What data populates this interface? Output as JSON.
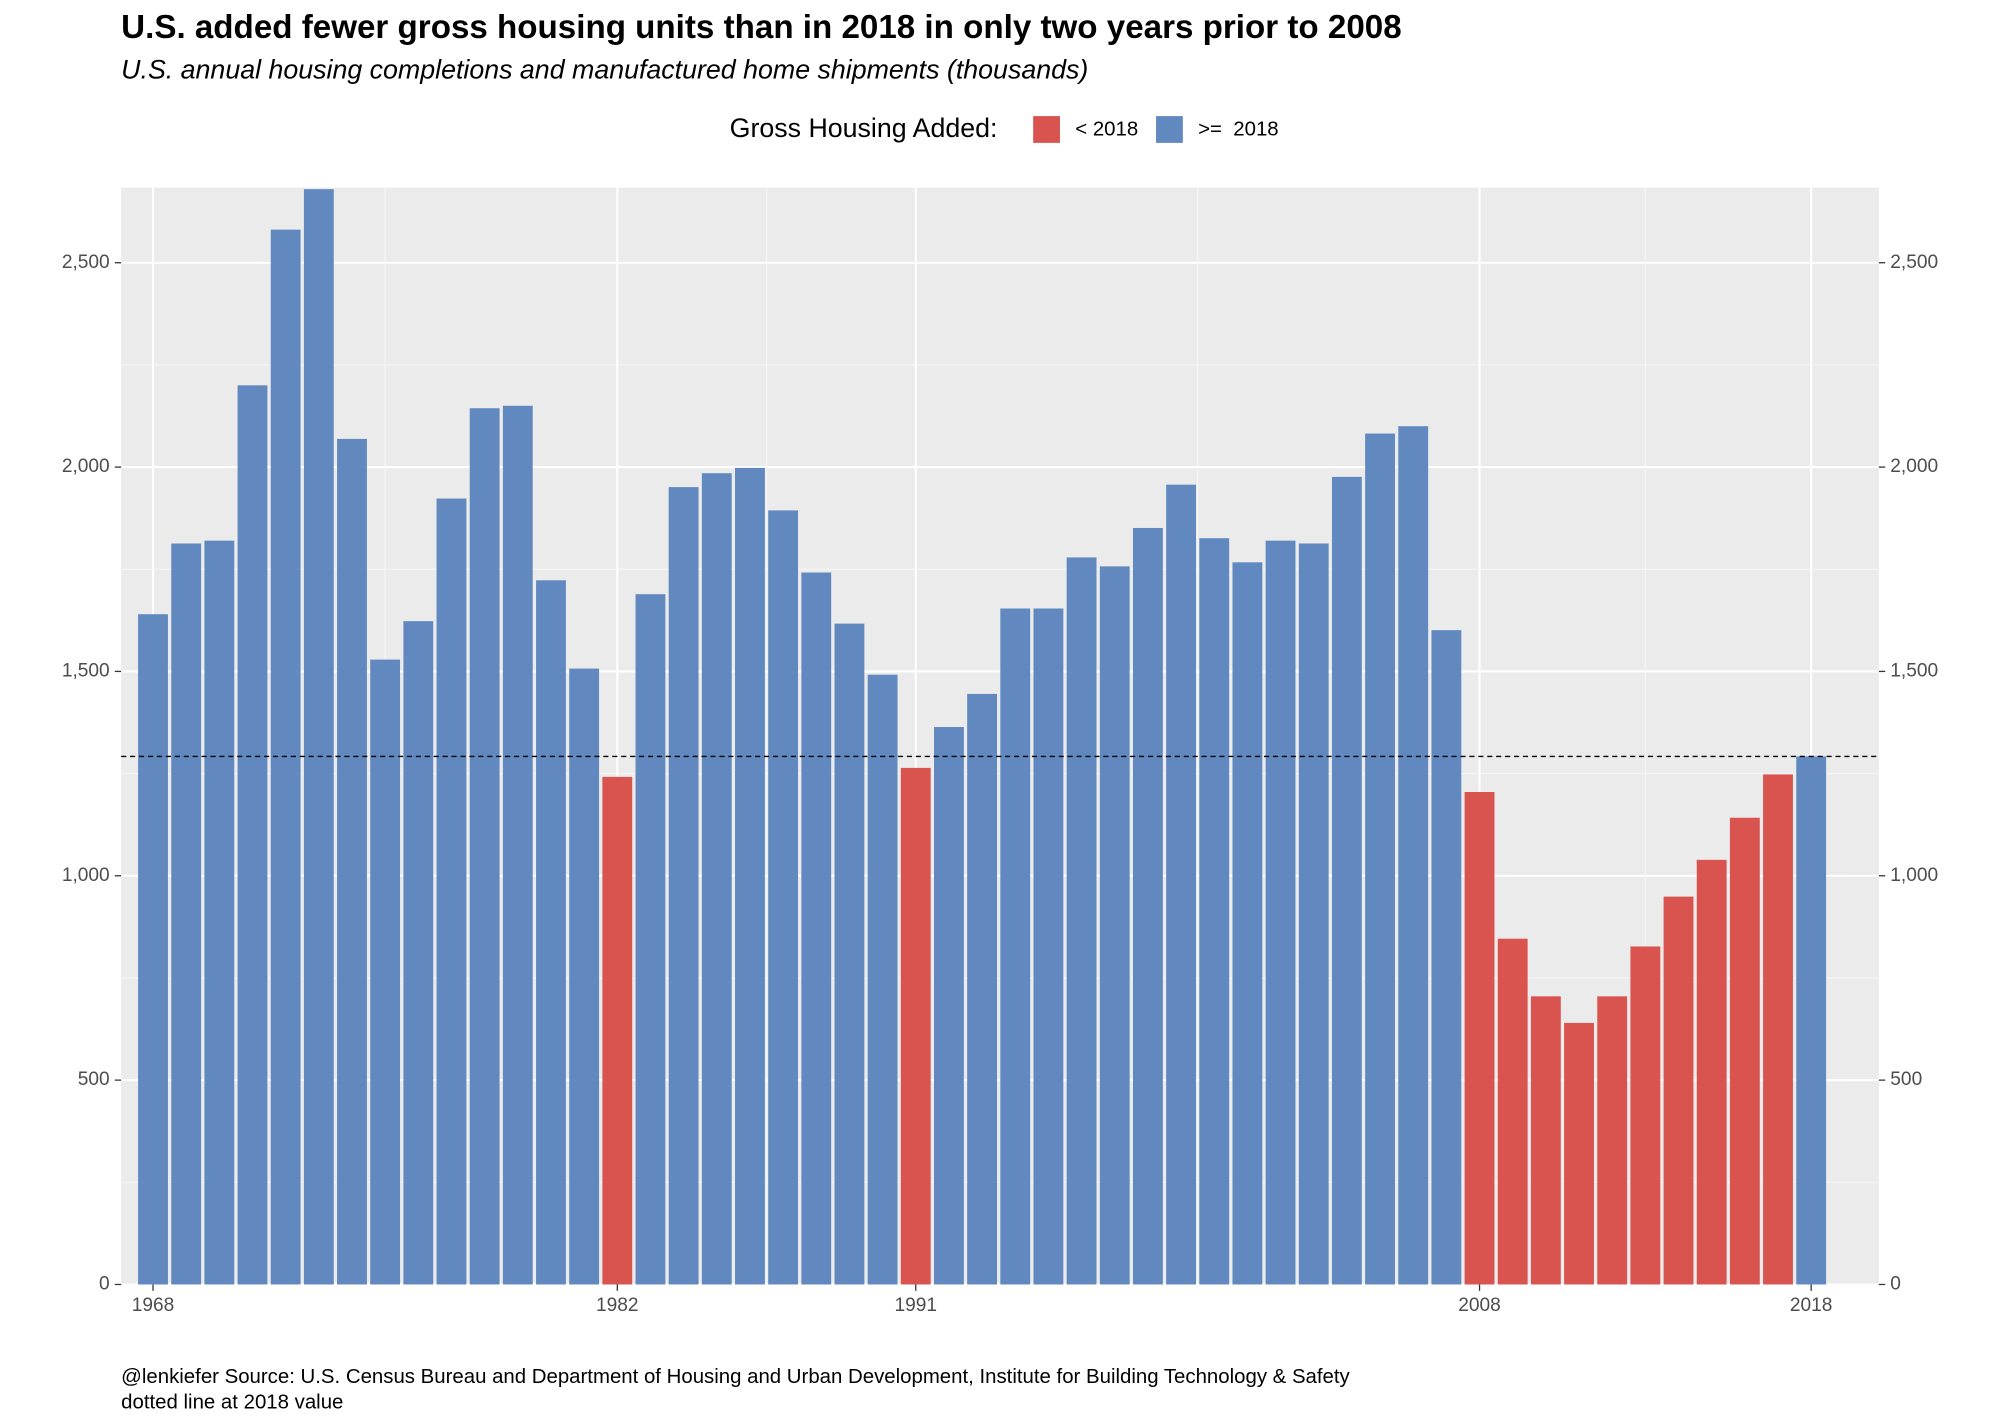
{
  "chart_data": {
    "type": "bar",
    "title": "U.S. added fewer gross housing units than in 2018 in only two years prior to 2008",
    "subtitle": "U.S. annual housing completions and manufactured home shipments (thousands)",
    "caption": [
      "@lenkiefer Source: U.S. Census Bureau and Department of Housing and Urban Development, Institute for Building Technology & Safety",
      "dotted line at 2018 value"
    ],
    "legend": {
      "title": "Gross Housing Added:",
      "position": "top",
      "items": [
        {
          "name": "< 2018",
          "color": "#d9534f"
        },
        {
          "name": ">=  2018",
          "color": "#6189c0"
        }
      ]
    },
    "x": [
      1968,
      1969,
      1970,
      1971,
      1972,
      1973,
      1974,
      1975,
      1976,
      1977,
      1978,
      1979,
      1980,
      1981,
      1982,
      1983,
      1984,
      1985,
      1986,
      1987,
      1988,
      1989,
      1990,
      1991,
      1992,
      1993,
      1994,
      1995,
      1996,
      1997,
      1998,
      1999,
      2000,
      2001,
      2002,
      2003,
      2004,
      2005,
      2006,
      2007,
      2008,
      2009,
      2010,
      2011,
      2012,
      2013,
      2014,
      2015,
      2016,
      2017,
      2018
    ],
    "values": [
      1640,
      1813,
      1820,
      2200,
      2581,
      2680,
      2069,
      1529,
      1623,
      1923,
      2144,
      2150,
      1723,
      1507,
      1242,
      1689,
      1951,
      1985,
      1998,
      1894,
      1742,
      1617,
      1492,
      1264,
      1364,
      1445,
      1654,
      1654,
      1779,
      1757,
      1851,
      1957,
      1826,
      1767,
      1820,
      1813,
      1976,
      2082,
      2100,
      1601,
      1205,
      846,
      705,
      640,
      705,
      827,
      949,
      1039,
      1142,
      1248,
      1292
    ],
    "xlim": [
      1967.04,
      2020.04
    ],
    "xticks": [
      1968,
      1982,
      1991,
      2008,
      2018
    ],
    "ylim": [
      0,
      2684
    ],
    "yticks": [
      0,
      500,
      {
        "value": 1000,
        "label": "1,000"
      },
      {
        "value": 1500,
        "label": "1,500"
      },
      {
        "value": 2000,
        "label": "2,000"
      },
      {
        "value": 2500,
        "label": "2,500"
      }
    ],
    "grid": true
  }
}
